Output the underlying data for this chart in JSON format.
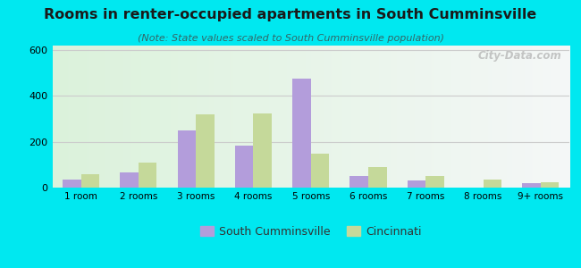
{
  "title": "Rooms in renter-occupied apartments in South Cumminsville",
  "subtitle": "(Note: State values scaled to South Cumminsville population)",
  "categories": [
    "1 room",
    "2 rooms",
    "3 rooms",
    "4 rooms",
    "5 rooms",
    "6 rooms",
    "7 rooms",
    "8 rooms",
    "9+ rooms"
  ],
  "south_cumminsville": [
    35,
    65,
    248,
    182,
    475,
    50,
    30,
    0,
    18
  ],
  "cincinnati": [
    60,
    110,
    320,
    325,
    150,
    90,
    50,
    35,
    22
  ],
  "color_sc": "#b39ddb",
  "color_cin": "#c5d99a",
  "ylim": [
    0,
    620
  ],
  "yticks": [
    0,
    200,
    400,
    600
  ],
  "bg_outer": "#00e8f0",
  "title_fontsize": 11.5,
  "subtitle_fontsize": 8,
  "legend_sc": "South Cumminsville",
  "legend_cin": "Cincinnati",
  "watermark": "City-Data.com",
  "grid_color": "#ccddcc"
}
